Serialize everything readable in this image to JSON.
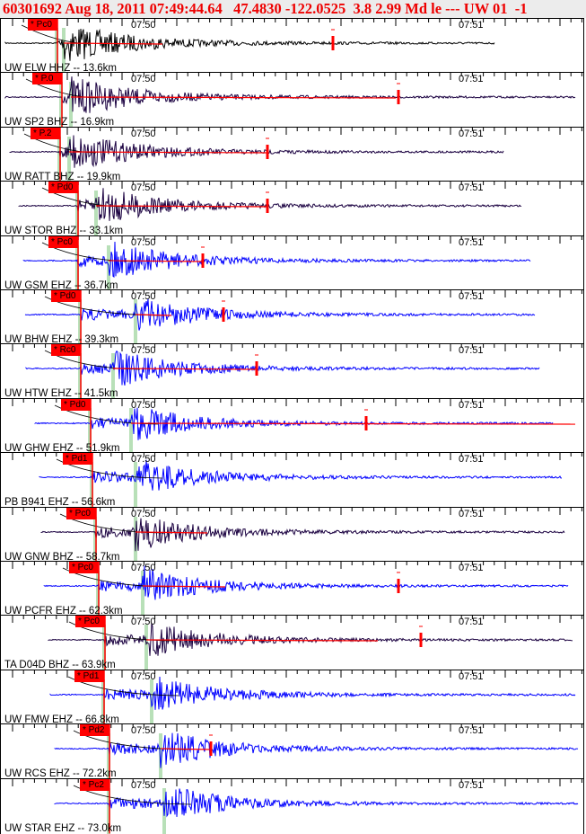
{
  "header": {
    "event_line": "60301692 Aug 18, 2011 07:49:44.64   47.4830 -122.0525  3.8 2.99 Md le --- UW 01  -1"
  },
  "time_labels": [
    "07:50",
    "07:51"
  ],
  "colors": {
    "header_text": "#ee0000",
    "pick": "#ff0000",
    "coda": "#ff0000",
    "blue_trace": "#0000ff",
    "dark_trace": "#1a0040",
    "black_trace": "#000000",
    "phase_marker": "#b8e0b8"
  },
  "stations": [
    {
      "label": "UW ELW HHZ -- 13.6km",
      "pick": "* Pc0",
      "trace": "black"
    },
    {
      "label": "UW SP2 BHZ -- 16.9km",
      "pick": "* P.0",
      "trace": "dark"
    },
    {
      "label": "UW RATT BHZ -- 19.9km",
      "pick": "* P.2",
      "trace": "dark"
    },
    {
      "label": "UW STOR BHZ -- 33.1km",
      "pick": "* Pd0",
      "trace": "dark"
    },
    {
      "label": "UW GSM EHZ -- 36.7km",
      "pick": "* Pc0",
      "trace": "blue"
    },
    {
      "label": "UW BHW EHZ -- 39.3km",
      "pick": "* Pd0",
      "trace": "blue"
    },
    {
      "label": "UW HTW EHZ -- 41.5km",
      "pick": "* Rc0",
      "trace": "blue"
    },
    {
      "label": "UW GHW EHZ -- 51.9km",
      "pick": "* Pd0",
      "trace": "blue"
    },
    {
      "label": "PB B941 EHZ -- 56.6km",
      "pick": "* Pd1",
      "trace": "blue"
    },
    {
      "label": "UW GNW BHZ -- 58.7km",
      "pick": "* Pc0",
      "trace": "dark"
    },
    {
      "label": "UW PCFR EHZ -- 62.3km",
      "pick": "* Pc0",
      "trace": "blue"
    },
    {
      "label": "TA D04D BHZ -- 63.9km",
      "pick": "* Pc0",
      "trace": "dark"
    },
    {
      "label": "UW FMW EHZ -- 66.8km",
      "pick": "* Pd1",
      "trace": "blue"
    },
    {
      "label": "UW RCS EHZ -- 72.2km",
      "pick": "* Pd2",
      "trace": "blue"
    },
    {
      "label": "UW STAR EHZ -- 73.0km",
      "pick": "* Pc2",
      "trace": "blue"
    }
  ]
}
